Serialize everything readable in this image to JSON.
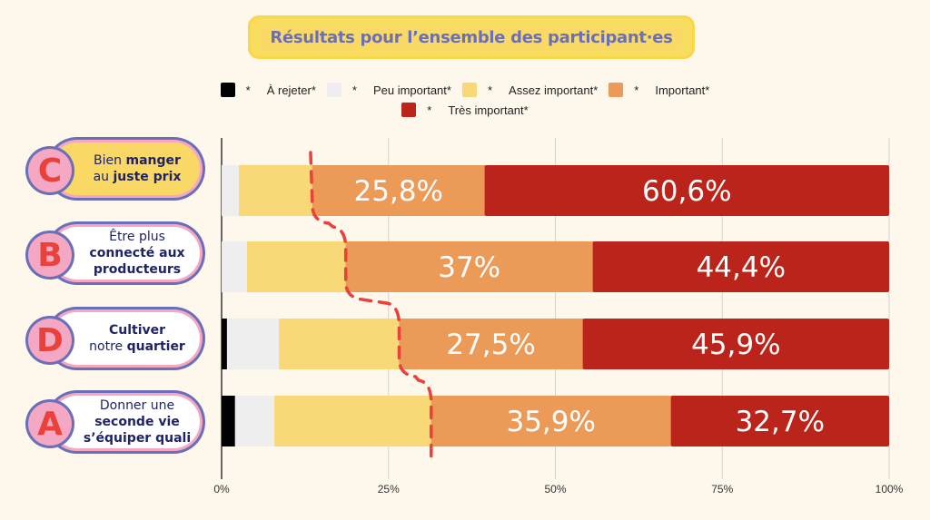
{
  "chart_data": {
    "type": "bar",
    "orientation": "horizontal-stacked-100",
    "title": "Résultats pour l’ensemble des participant·es",
    "legend_position": "top",
    "xlim": [
      0,
      100
    ],
    "x_ticks": [
      "0%",
      "25%",
      "50%",
      "75%",
      "100%"
    ],
    "x_tick_values": [
      0,
      25,
      50,
      75,
      100
    ],
    "grid": true,
    "categories": [
      {
        "letter": "C",
        "lines": [
          [
            "Bien ",
            false
          ],
          [
            "manger",
            true
          ],
          [
            "|",
            false
          ],
          [
            "au ",
            false
          ],
          [
            "juste prix",
            true
          ]
        ],
        "label": "Bien manger au juste prix"
      },
      {
        "letter": "B",
        "lines": [
          [
            "Être plus",
            false
          ],
          [
            "|",
            false
          ],
          [
            "connecté aux",
            true
          ],
          [
            "|",
            false
          ],
          [
            "producteurs",
            true
          ]
        ],
        "label": "Être plus connecté aux producteurs"
      },
      {
        "letter": "D",
        "lines": [
          [
            "Cultiver",
            true
          ],
          [
            "|",
            false
          ],
          [
            "notre ",
            false
          ],
          [
            "quartier",
            true
          ]
        ],
        "label": "Cultiver notre quartier"
      },
      {
        "letter": "A",
        "lines": [
          [
            "Donner une",
            false
          ],
          [
            "|",
            false
          ],
          [
            "seconde vie",
            true
          ],
          [
            "|",
            false
          ],
          [
            "s’équiper quali",
            true
          ]
        ],
        "label": "Donner une seconde vie s’équiper quali"
      }
    ],
    "series": [
      {
        "name": "À rejeter*",
        "color": "#000000",
        "values": [
          0,
          0,
          0.8,
          2.0
        ],
        "labels": [
          "",
          "",
          "",
          ""
        ]
      },
      {
        "name": "Peu important*",
        "color": "#eeeeee",
        "values": [
          2.6,
          3.8,
          7.8,
          5.9
        ],
        "labels": [
          "",
          "",
          "",
          ""
        ]
      },
      {
        "name": "Assez important*",
        "color": "#f9d877",
        "values": [
          11.0,
          14.8,
          18.0,
          23.5
        ],
        "labels": [
          "",
          "",
          "",
          ""
        ]
      },
      {
        "name": "Important*",
        "color": "#eb9a58",
        "values": [
          25.8,
          37.0,
          27.5,
          35.9
        ],
        "labels": [
          "25,8%",
          "37%",
          "27,5%",
          "35,9%"
        ]
      },
      {
        "name": "Très important*",
        "color": "#bb241b",
        "values": [
          60.6,
          44.4,
          45.9,
          32.7
        ],
        "labels": [
          "60,6%",
          "44,4%",
          "45,9%",
          "32,7%"
        ]
      }
    ],
    "legend_marker": "*",
    "annotation": "dashed red line tracing the Important* segment start across bars"
  },
  "colors": {
    "title_bg": "#f9dd5f",
    "title_text": "#6b6fb8",
    "dashed_line": "#e8423a",
    "pill_fill_C": "#f9d866",
    "pill_fill_default": "#ffffff"
  }
}
